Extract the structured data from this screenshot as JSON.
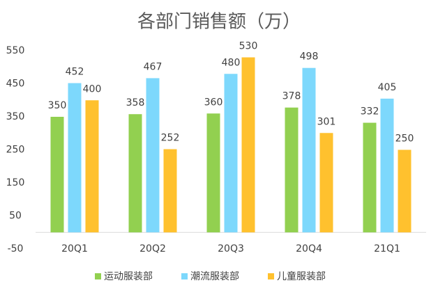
{
  "chart_data": {
    "type": "bar",
    "title": "各部门销售额（万）",
    "categories": [
      "20Q1",
      "20Q2",
      "20Q3",
      "20Q4",
      "21Q1"
    ],
    "series": [
      {
        "name": "运动服装部",
        "color": "#92d050",
        "values": [
          350,
          358,
          360,
          378,
          332
        ]
      },
      {
        "name": "潮流服装部",
        "color": "#7dd8fc",
        "values": [
          452,
          467,
          480,
          498,
          405
        ]
      },
      {
        "name": "儿童服装部",
        "color": "#ffc12e",
        "values": [
          400,
          252,
          530,
          301,
          250
        ]
      }
    ],
    "ylim": [
      -50,
      550
    ],
    "yticks": [
      -50,
      50,
      150,
      250,
      350,
      450,
      550
    ],
    "grid": false
  }
}
